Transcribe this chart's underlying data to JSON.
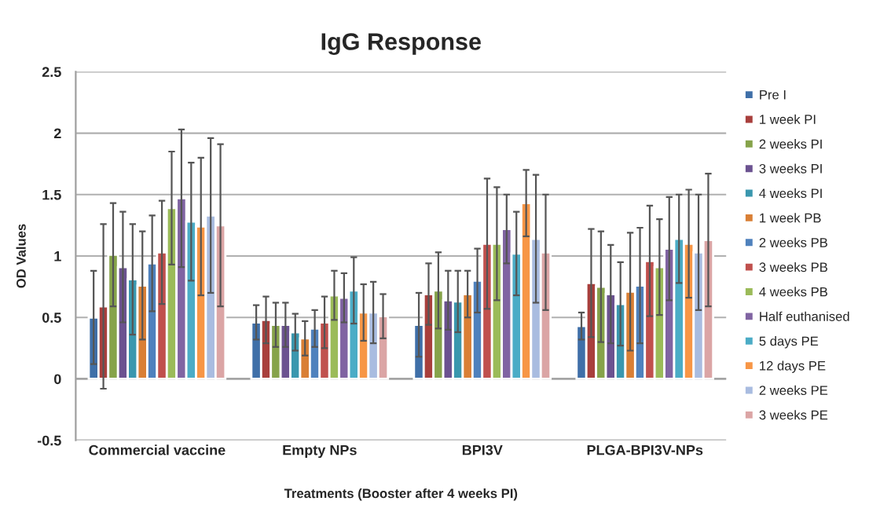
{
  "chart_data": {
    "type": "bar",
    "title": "IgG Response",
    "xlabel": "Treatments (Booster after 4 weeks PI)",
    "ylabel": "OD Values",
    "categories": [
      "Commercial vaccine",
      "Empty NPs",
      "BPI3V",
      "PLGA-BPI3V-NPs"
    ],
    "ylim": [
      -0.5,
      2.5
    ],
    "yticks": [
      -0.5,
      0,
      0.5,
      1,
      1.5,
      2,
      2.5
    ],
    "grid": "y",
    "legend": "right",
    "series": [
      {
        "name": "Pre I",
        "color": "#3f6fa8",
        "values": [
          0.5,
          0.46,
          0.44,
          0.43
        ],
        "errors": [
          0.38,
          0.14,
          0.26,
          0.11
        ]
      },
      {
        "name": "1 week PI",
        "color": "#a83f3c",
        "values": [
          0.59,
          0.48,
          0.69,
          0.78
        ],
        "errors": [
          0.67,
          0.19,
          0.25,
          0.44
        ]
      },
      {
        "name": "2 weeks PI",
        "color": "#86a34a",
        "values": [
          1.01,
          0.44,
          0.72,
          0.75
        ],
        "errors": [
          0.42,
          0.18,
          0.31,
          0.45
        ]
      },
      {
        "name": "3 weeks PI",
        "color": "#6b5290",
        "values": [
          0.91,
          0.44,
          0.64,
          0.69
        ],
        "errors": [
          0.45,
          0.18,
          0.24,
          0.4
        ]
      },
      {
        "name": "4 weeks PI",
        "color": "#3a97ae",
        "values": [
          0.81,
          0.38,
          0.63,
          0.61
        ],
        "errors": [
          0.45,
          0.15,
          0.25,
          0.34
        ]
      },
      {
        "name": "1 week PB",
        "color": "#d97f35",
        "values": [
          0.76,
          0.33,
          0.69,
          0.71
        ],
        "errors": [
          0.44,
          0.14,
          0.19,
          0.48
        ]
      },
      {
        "name": "2 weeks PB",
        "color": "#4f81bd",
        "values": [
          0.94,
          0.41,
          0.8,
          0.76
        ],
        "errors": [
          0.39,
          0.15,
          0.26,
          0.47
        ]
      },
      {
        "name": "3 weeks PB",
        "color": "#c0504d",
        "values": [
          1.03,
          0.46,
          1.1,
          0.96
        ],
        "errors": [
          0.42,
          0.21,
          0.53,
          0.45
        ]
      },
      {
        "name": "4 weeks PB",
        "color": "#9bbb59",
        "values": [
          1.39,
          0.68,
          1.1,
          0.91
        ],
        "errors": [
          0.46,
          0.2,
          0.46,
          0.39
        ]
      },
      {
        "name": "Half euthanised",
        "color": "#8064a2",
        "values": [
          1.47,
          0.66,
          1.22,
          1.06
        ],
        "errors": [
          0.56,
          0.2,
          0.28,
          0.42
        ]
      },
      {
        "name": "5 days PE",
        "color": "#4bacc6",
        "values": [
          1.28,
          0.72,
          1.02,
          1.14
        ],
        "errors": [
          0.48,
          0.27,
          0.34,
          0.36
        ]
      },
      {
        "name": "12 days PE",
        "color": "#f79646",
        "values": [
          1.24,
          0.54,
          1.43,
          1.1
        ],
        "errors": [
          0.56,
          0.23,
          0.27,
          0.44
        ]
      },
      {
        "name": "2 weeks PE",
        "color": "#a9bce0",
        "values": [
          1.33,
          0.54,
          1.14,
          1.03
        ],
        "errors": [
          0.63,
          0.25,
          0.52,
          0.47
        ]
      },
      {
        "name": "3 weeks PE",
        "color": "#dba5a5",
        "values": [
          1.25,
          0.51,
          1.03,
          1.13
        ],
        "errors": [
          0.66,
          0.18,
          0.47,
          0.54
        ]
      }
    ]
  }
}
